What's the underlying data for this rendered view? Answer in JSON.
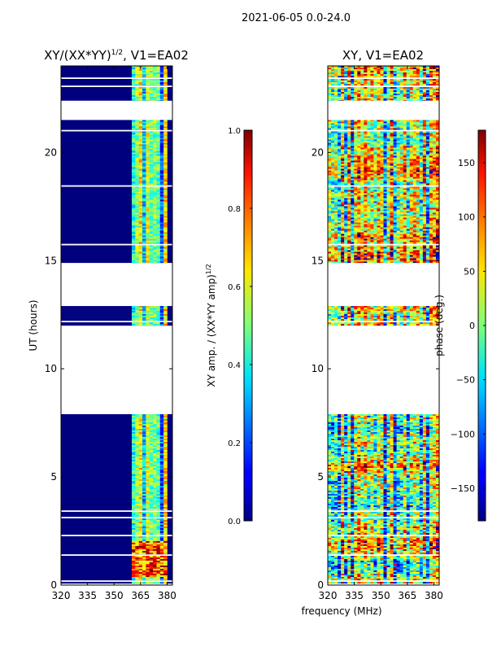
{
  "figure": {
    "title": "2021-06-05 0.0-24.0",
    "xlabel": "frequency (MHz)"
  },
  "chart_data": [
    {
      "type": "heatmap",
      "title_main": "XY/(XX*YY)",
      "title_sup": "1/2",
      "title_tail": ", V1=EA02",
      "ylabel": "UT (hours)",
      "xlim": [
        320,
        383
      ],
      "ylim": [
        0,
        24
      ],
      "xticks": [
        "320",
        "335",
        "350",
        "365",
        "380"
      ],
      "xtick_values": [
        320,
        335,
        350,
        365,
        380
      ],
      "yticks": [
        "0",
        "5",
        "10",
        "15",
        "20"
      ],
      "ytick_values": [
        0,
        5,
        10,
        15,
        20
      ],
      "data_blocks_ut": [
        [
          0,
          7.9
        ],
        [
          12.0,
          12.9
        ],
        [
          14.9,
          21.5
        ],
        [
          22.4,
          24.0
        ]
      ],
      "rfi_band_mhz": [
        360,
        380
      ],
      "colorbar": {
        "label_main": "XY amp. / (XX*YY amp)",
        "label_sup": "1/2",
        "range": [
          0.0,
          1.0
        ],
        "ticks": [
          "0.0",
          "0.2",
          "0.4",
          "0.6",
          "0.8",
          "1.0"
        ],
        "tick_values": [
          0.0,
          0.2,
          0.4,
          0.6,
          0.8,
          1.0
        ]
      }
    },
    {
      "type": "heatmap",
      "title": "XY, V1=EA02",
      "xlim": [
        320,
        383
      ],
      "ylim": [
        0,
        24
      ],
      "xticks": [
        "320",
        "335",
        "350",
        "365",
        "380"
      ],
      "xtick_values": [
        320,
        335,
        350,
        365,
        380
      ],
      "yticks": [
        "0",
        "5",
        "10",
        "15",
        "20"
      ],
      "ytick_values": [
        0,
        5,
        10,
        15,
        20
      ],
      "data_blocks_ut": [
        [
          0,
          7.9
        ],
        [
          12.0,
          12.9
        ],
        [
          14.9,
          21.5
        ],
        [
          22.4,
          24.0
        ]
      ],
      "colorbar": {
        "label": "phase (deg.)",
        "range": [
          -180,
          180
        ],
        "ticks": [
          "−150",
          "−100",
          "−50",
          "0",
          "50",
          "100",
          "150"
        ],
        "tick_values": [
          -150,
          -100,
          -50,
          0,
          50,
          100,
          150
        ]
      }
    }
  ]
}
